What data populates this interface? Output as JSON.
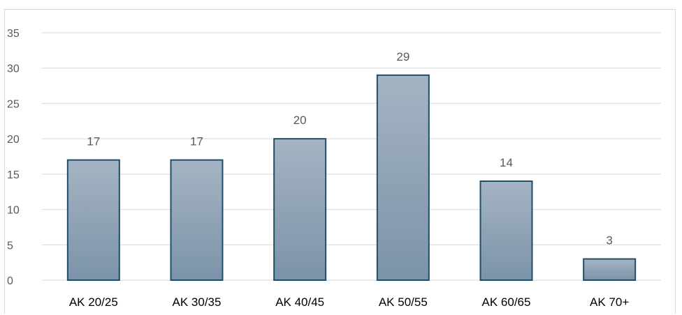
{
  "chart_data": {
    "type": "bar",
    "title": "",
    "xlabel": "",
    "ylabel": "",
    "categories": [
      "AK 20/25",
      "AK 30/35",
      "AK 40/45",
      "AK 50/55",
      "AK 60/65",
      "AK 70+"
    ],
    "values": [
      17,
      17,
      20,
      29,
      14,
      3
    ],
    "ylim": [
      0,
      35
    ],
    "yticks": [
      0,
      5,
      10,
      15,
      20,
      25,
      30,
      35
    ],
    "grid": true,
    "legend": "none",
    "data_labels": true
  },
  "colors": {
    "bar_top": "#a5b4c3",
    "bar_bottom": "#7b93a9",
    "bar_border": "#1f4e6b",
    "gridline": "#d9d9d9",
    "axis_text": "#595959",
    "category_text": "#000000"
  }
}
